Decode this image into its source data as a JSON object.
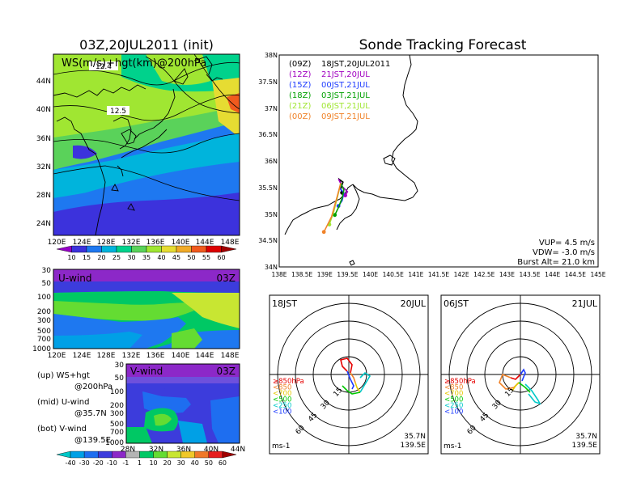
{
  "left": {
    "title": "03Z,20JUL2011 (init)",
    "top_panel": {
      "label": "WS(m/s)+hgt(km)@200hPa",
      "contour_labels": [
        "12.4",
        "12.5"
      ],
      "lat_ticks": [
        "44N",
        "40N",
        "36N",
        "32N",
        "28N",
        "24N"
      ],
      "lon_ticks": [
        "120E",
        "124E",
        "128E",
        "132E",
        "136E",
        "140E",
        "144E",
        "148E"
      ],
      "colorbar_labels": [
        "10",
        "15",
        "20",
        "25",
        "30",
        "35",
        "40",
        "45",
        "50",
        "55",
        "60"
      ]
    },
    "u_panel": {
      "label": "U-wind",
      "time": "03Z",
      "p_ticks": [
        "30",
        "50",
        "100",
        "200",
        "300",
        "500",
        "700",
        "1000"
      ],
      "lon_ticks": [
        "120E",
        "124E",
        "128E",
        "132E",
        "136E",
        "140E",
        "144E",
        "148E"
      ]
    },
    "v_panel": {
      "label": "V-wind",
      "time": "03Z",
      "p_ticks": [
        "30",
        "50",
        "100",
        "200",
        "300",
        "500",
        "700",
        "1000"
      ],
      "lat_ticks": [
        "28N",
        "32N",
        "36N",
        "40N",
        "44N"
      ]
    },
    "legend_text": [
      {
        "a": "(up) WS+hgt",
        "b": "@200hPa"
      },
      {
        "a": "(mid) U-wind",
        "b": "@35.7N"
      },
      {
        "a": "(bot) V-wind",
        "b": "@139.5E"
      }
    ],
    "bottom_colorbar_labels": [
      "-40",
      "-30",
      "-20",
      "-10",
      "-1",
      "1",
      "10",
      "20",
      "30",
      "40",
      "50",
      "60"
    ]
  },
  "right": {
    "title": "Sonde Tracking Forecast",
    "map": {
      "lat_ticks": [
        "38N",
        "37.5N",
        "37N",
        "36.5N",
        "36N",
        "35.5N",
        "35N",
        "34.5N",
        "34N"
      ],
      "lon_ticks": [
        "138E",
        "138.5E",
        "139E",
        "139.5E",
        "140E",
        "140.5E",
        "141E",
        "141.5E",
        "142E",
        "142.5E",
        "143E",
        "143.5E",
        "144E",
        "144.5E",
        "145E"
      ],
      "launches": [
        {
          "code": "(09Z)",
          "label": "18JST,20JUL2011",
          "color": "#000000"
        },
        {
          "code": "(12Z)",
          "label": "21JST,20JUL",
          "color": "#a000c0"
        },
        {
          "code": "(15Z)",
          "label": "00JST,21JUL",
          "color": "#1e3cff"
        },
        {
          "code": "(18Z)",
          "label": "03JST,21JUL",
          "color": "#00a000"
        },
        {
          "code": "(21Z)",
          "label": "06JST,21JUL",
          "color": "#a0e632"
        },
        {
          "code": "(00Z)",
          "label": "09JST,21JUL",
          "color": "#f08228"
        }
      ],
      "info": [
        "VUP= 4.5 m/s",
        "VDW= -3.0 m/s",
        "Burst Alt= 21.0 km"
      ]
    },
    "hodograph_left": {
      "time": "18JST",
      "date": "20JUL",
      "ring_labels": [
        "15",
        "30",
        "45",
        "60"
      ],
      "unit": "ms-1",
      "lat": "35.7N",
      "lon": "139.5E"
    },
    "hodograph_right": {
      "time": "06JST",
      "date": "21JUL",
      "ring_labels": [
        "15",
        "30",
        "45",
        "60"
      ],
      "unit": "ms-1",
      "lat": "35.7N",
      "lon": "139.5E"
    },
    "layer_legend": [
      {
        "label": "≥850hPa",
        "color": "#e60000"
      },
      {
        "label": "<850",
        "color": "#f08228"
      },
      {
        "label": "<700",
        "color": "#e6c800"
      },
      {
        "label": "<500",
        "color": "#00c800"
      },
      {
        "label": "<250",
        "color": "#00c8c8"
      },
      {
        "label": "<100",
        "color": "#1e3cff"
      }
    ]
  },
  "chart_data": [
    {
      "type": "heatmap",
      "title": "03Z,20JUL2011 (init)",
      "subtitle": "WS(m/s)+hgt(km)@200hPa",
      "xlim": [
        120,
        150
      ],
      "ylim": [
        22,
        48
      ],
      "colorbar": [
        10,
        15,
        20,
        25,
        30,
        35,
        40,
        45,
        50,
        55,
        60
      ],
      "colors": [
        "#9600c8",
        "#3c32dc",
        "#1e78f0",
        "#00b4dc",
        "#00d28c",
        "#5ad25a",
        "#a0e632",
        "#e6dc32",
        "#f0aa28",
        "#f05a1e",
        "#dc0000",
        "#a00000"
      ],
      "contour_labels": [
        12.4,
        12.5
      ]
    },
    {
      "type": "heatmap",
      "title": "U-wind",
      "xlim": [
        120,
        150
      ],
      "ylim": [
        1000,
        30
      ],
      "y_ticks": [
        30,
        50,
        100,
        200,
        300,
        500,
        700,
        1000
      ]
    },
    {
      "type": "heatmap",
      "title": "V-wind",
      "xlim": [
        28,
        44
      ],
      "ylim": [
        1000,
        30
      ],
      "y_ticks": [
        30,
        50,
        100,
        200,
        300,
        500,
        700,
        1000
      ],
      "colorbar": [
        -40,
        -30,
        -20,
        -10,
        -1,
        1,
        10,
        20,
        30,
        40,
        50,
        60
      ],
      "colors": [
        "#00c8c8",
        "#00a0e6",
        "#1e6ef0",
        "#3c3cdc",
        "#8c28c8",
        "#b4b4b4",
        "#00c864",
        "#64dc32",
        "#c8e632",
        "#f0c828",
        "#f07828",
        "#e61e1e",
        "#a00000"
      ]
    },
    {
      "type": "line",
      "title": "Sonde Tracking Forecast",
      "xlim": [
        138,
        145
      ],
      "ylim": [
        34,
        38
      ],
      "series": [
        {
          "name": "(09Z) 18JST,20JUL2011",
          "x": [
            139.35,
            139.32,
            139.4,
            139.35,
            139.38
          ],
          "y": [
            35.58,
            35.65,
            35.6,
            35.48,
            35.4
          ]
        },
        {
          "name": "(12Z) 21JST,20JUL",
          "x": [
            139.35,
            139.3,
            139.38,
            139.5,
            139.45
          ],
          "y": [
            35.58,
            35.66,
            35.52,
            35.42,
            35.35
          ]
        },
        {
          "name": "(15Z) 00JST,21JUL",
          "x": [
            139.35,
            139.33,
            139.42,
            139.38,
            139.3
          ],
          "y": [
            35.58,
            35.48,
            35.4,
            35.25,
            35.15
          ]
        },
        {
          "name": "(18Z) 03JST,21JUL",
          "x": [
            139.35,
            139.42,
            139.38,
            139.3,
            139.22
          ],
          "y": [
            35.58,
            35.45,
            35.3,
            35.12,
            34.98
          ]
        },
        {
          "name": "(21Z) 06JST,21JUL",
          "x": [
            139.35,
            139.3,
            139.2,
            139.1
          ],
          "y": [
            35.58,
            35.4,
            35.05,
            34.8
          ]
        },
        {
          "name": "(00Z) 09JST,21JUL",
          "x": [
            139.35,
            139.28,
            139.15,
            138.98
          ],
          "y": [
            35.58,
            35.35,
            34.95,
            34.66
          ]
        }
      ],
      "annotations": [
        "VUP= 4.5 m/s",
        "VDW= -3.0 m/s",
        "Burst Alt= 21.0 km"
      ]
    }
  ]
}
